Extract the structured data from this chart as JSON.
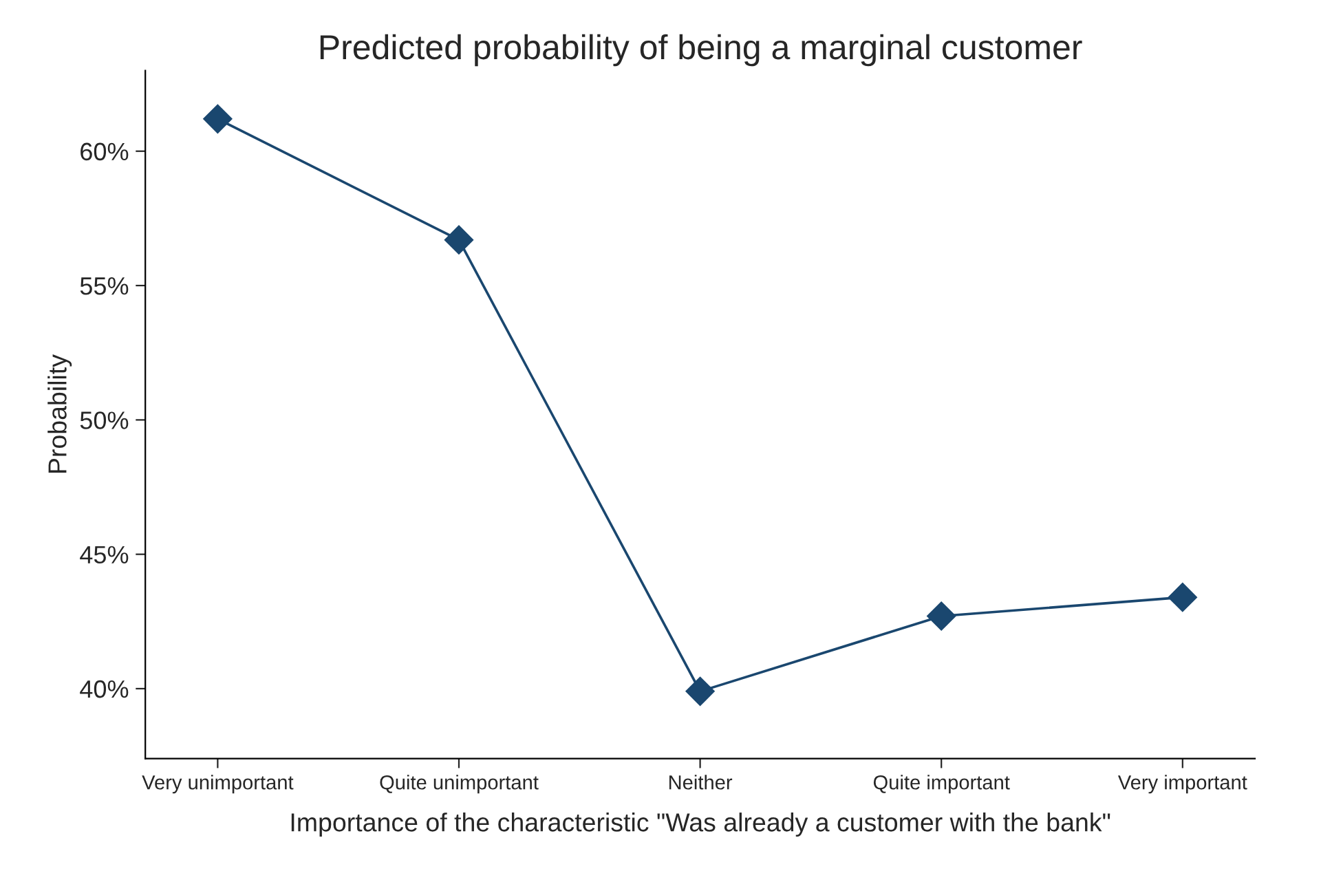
{
  "chart_data": {
    "type": "line",
    "title": "Predicted probability of being a marginal customer",
    "xlabel": "Importance of the characteristic \"Was already a customer with the bank\"",
    "ylabel": "Probability",
    "categories": [
      "Very unimportant",
      "Quite unimportant",
      "Neither",
      "Quite important",
      "Very important"
    ],
    "series": [
      {
        "color": "#1a476f",
        "values": [
          61.2,
          56.7,
          39.9,
          42.7,
          43.4
        ]
      }
    ],
    "ylim": [
      37.4,
      63.0
    ],
    "yticks": [
      {
        "value": 40,
        "label": "40%"
      },
      {
        "value": 45,
        "label": "45%"
      },
      {
        "value": 50,
        "label": "50%"
      },
      {
        "value": 55,
        "label": "55%"
      },
      {
        "value": 60,
        "label": "60%"
      }
    ],
    "grid": false,
    "marker": "diamond",
    "line_style": "solid"
  }
}
